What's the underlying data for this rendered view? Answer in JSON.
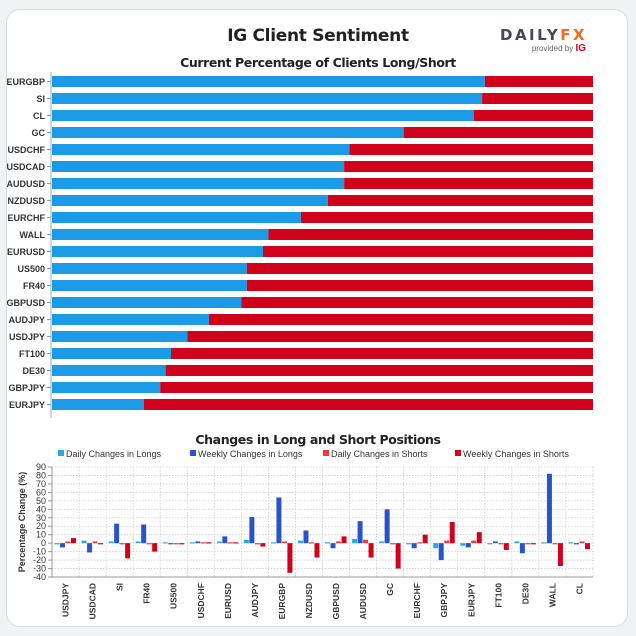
{
  "header": {
    "title": "IG Client Sentiment",
    "logo_text_main": "DAILY",
    "logo_text_accent": "FX",
    "logo_provided_by": "provided by",
    "logo_ig": "IG"
  },
  "colors": {
    "long": "#1b9be5",
    "short": "#d0021b",
    "daily_long": "#29a8e8",
    "weekly_long": "#2a52c9",
    "daily_short": "#f0393f",
    "weekly_short": "#d0021b",
    "logo_accent": "#f26b1d"
  },
  "legend": [
    {
      "label": "Daily Changes in Longs",
      "color": "#29a8e8"
    },
    {
      "label": "Weekly Changes in Longs",
      "color": "#2a52c9"
    },
    {
      "label": "Daily Changes in Shorts",
      "color": "#f0393f"
    },
    {
      "label": "Weekly Changes in Shorts",
      "color": "#d0021b"
    }
  ],
  "chart_data": [
    {
      "type": "bar",
      "orientation": "horizontal-stacked-percent",
      "title": "Current Percentage of Clients Long/Short",
      "categories": [
        "EURGBP",
        "SI",
        "CL",
        "GC",
        "USDCHF",
        "USDCAD",
        "AUDUSD",
        "NZDUSD",
        "EURCHF",
        "WALL",
        "EURUSD",
        "US500",
        "FR40",
        "GBPUSD",
        "AUDJPY",
        "USDJPY",
        "FT100",
        "DE30",
        "GBPJPY",
        "EURJPY"
      ],
      "series": [
        {
          "name": "Long",
          "values": [
            80,
            79.5,
            78,
            65,
            55,
            54,
            54,
            51,
            46,
            40,
            39,
            36,
            36,
            35,
            29,
            25,
            22,
            21,
            20,
            17
          ]
        },
        {
          "name": "Short",
          "values": [
            20,
            20.5,
            22,
            35,
            45,
            46,
            46,
            49,
            54,
            60,
            61,
            64,
            64,
            65,
            71,
            75,
            78,
            79,
            80,
            83
          ]
        }
      ],
      "xlim": [
        0,
        100
      ]
    },
    {
      "type": "bar",
      "title": "Changes in Long and Short Positions",
      "ylabel": "Percentage Change (%)",
      "xlabel": "",
      "ylim": [
        -40,
        90
      ],
      "yticks": [
        90,
        80,
        70,
        60,
        50,
        40,
        30,
        20,
        10,
        0,
        -10,
        -20,
        -30,
        -40
      ],
      "grid": true,
      "legend_position": "top",
      "categories": [
        "USDJPY",
        "USDCAD",
        "SI",
        "FR40",
        "US500",
        "USDCHF",
        "EURUSD",
        "AUDJPY",
        "EURGBP",
        "NZDUSD",
        "GBPUSD",
        "AUDUSD",
        "GC",
        "EURCHF",
        "GBPJPY",
        "EURJPY",
        "FT100",
        "DE30",
        "WALL",
        "CL"
      ],
      "series": [
        {
          "name": "Daily Changes in Longs",
          "values": [
            -1,
            3,
            2,
            2,
            1,
            1,
            2,
            4,
            1,
            3,
            1,
            5,
            2,
            0,
            -6,
            -3,
            0,
            2,
            1,
            1
          ]
        },
        {
          "name": "Weekly Changes in Longs",
          "values": [
            -5,
            -11,
            23,
            22,
            -1,
            2,
            8,
            31,
            54,
            15,
            -6,
            26,
            40,
            -6,
            -20,
            -5,
            2,
            -12,
            82,
            0
          ]
        },
        {
          "name": "Daily Changes in Shorts",
          "values": [
            2,
            2,
            -1,
            0,
            0,
            1,
            1,
            0,
            2,
            1,
            2,
            4,
            0,
            1,
            3,
            3,
            0,
            0,
            -1,
            2
          ]
        },
        {
          "name": "Weekly Changes in Shorts",
          "values": [
            6,
            0,
            -18,
            -10,
            0,
            1,
            1,
            -4,
            -35,
            -17,
            8,
            -17,
            -30,
            10,
            25,
            13,
            -8,
            -1,
            -27,
            -7
          ]
        }
      ]
    }
  ]
}
